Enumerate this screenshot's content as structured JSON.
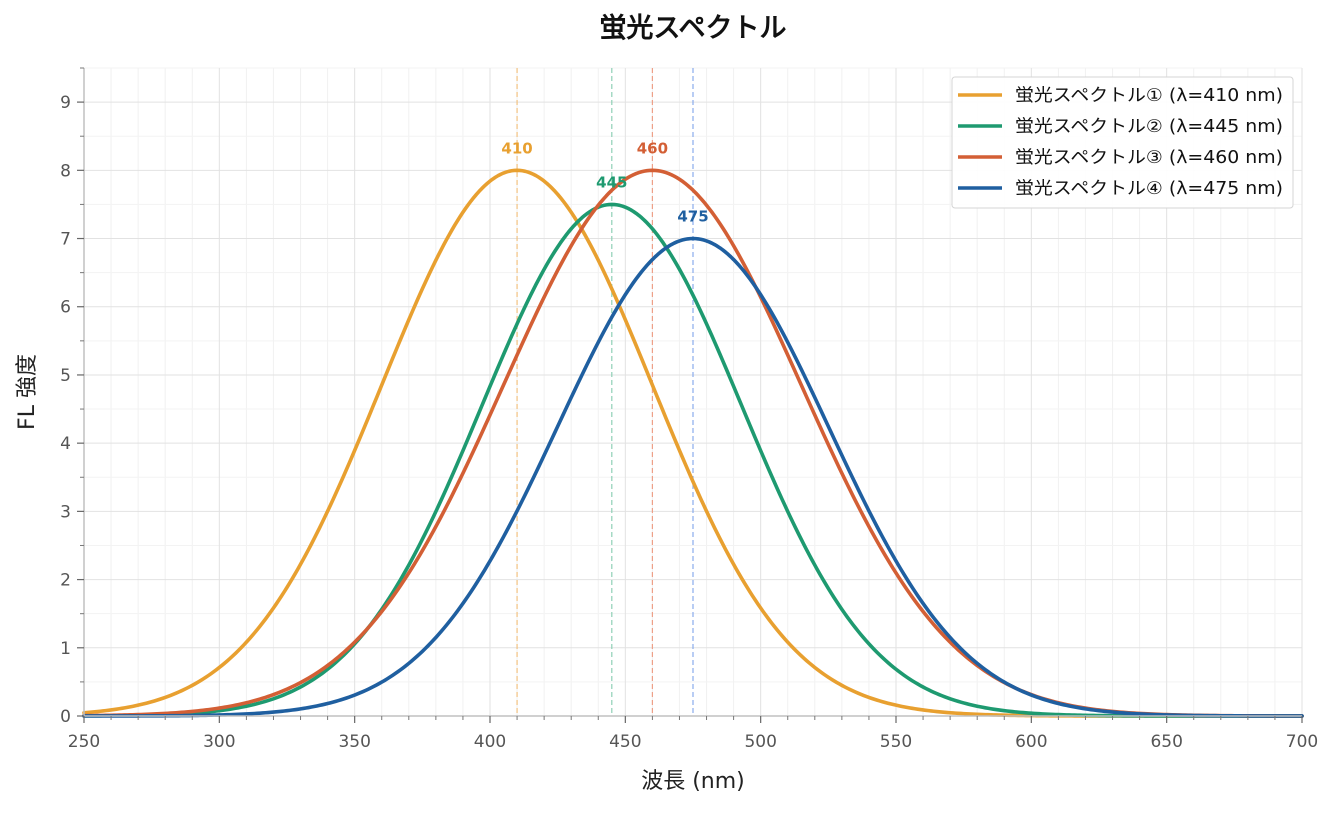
{
  "chart_data": {
    "type": "line",
    "title": "蛍光スペクトル",
    "xlabel": "波長 (nm)",
    "ylabel": "FL 強度",
    "xlim": [
      250,
      700
    ],
    "ylim": [
      0,
      9.5
    ],
    "x_ticks": [
      "250",
      "300",
      "350",
      "400",
      "450",
      "500",
      "550",
      "600",
      "650",
      "700"
    ],
    "y_ticks": [
      "0",
      "1",
      "2",
      "3",
      "4",
      "5",
      "6",
      "7",
      "8",
      "9"
    ],
    "x_minor_step": 10,
    "y_minor_step": 0.5,
    "grid": true,
    "legend_position": "top-right",
    "series": [
      {
        "name": "蛍光スペクトル① (λ=410 nm)",
        "peak_label": "410",
        "peak_x": 410,
        "peak_y": 8.0,
        "sigma": 50,
        "color": "#E8A030"
      },
      {
        "name": "蛍光スペクトル② (λ=445 nm)",
        "peak_label": "445",
        "peak_x": 445,
        "peak_y": 7.5,
        "sigma": 48,
        "color": "#1E9A70"
      },
      {
        "name": "蛍光スペクトル③ (λ=460 nm)",
        "peak_label": "460",
        "peak_x": 460,
        "peak_y": 8.0,
        "sigma": 55,
        "color": "#D35F35"
      },
      {
        "name": "蛍光スペクトル④ (λ=475 nm)",
        "peak_label": "475",
        "peak_x": 475,
        "peak_y": 7.0,
        "sigma": 50,
        "color": "#1F5FA0"
      }
    ],
    "peak_line_colors": [
      "#F2C282",
      "#8FD0B6",
      "#EEA088",
      "#8AACEC"
    ]
  }
}
